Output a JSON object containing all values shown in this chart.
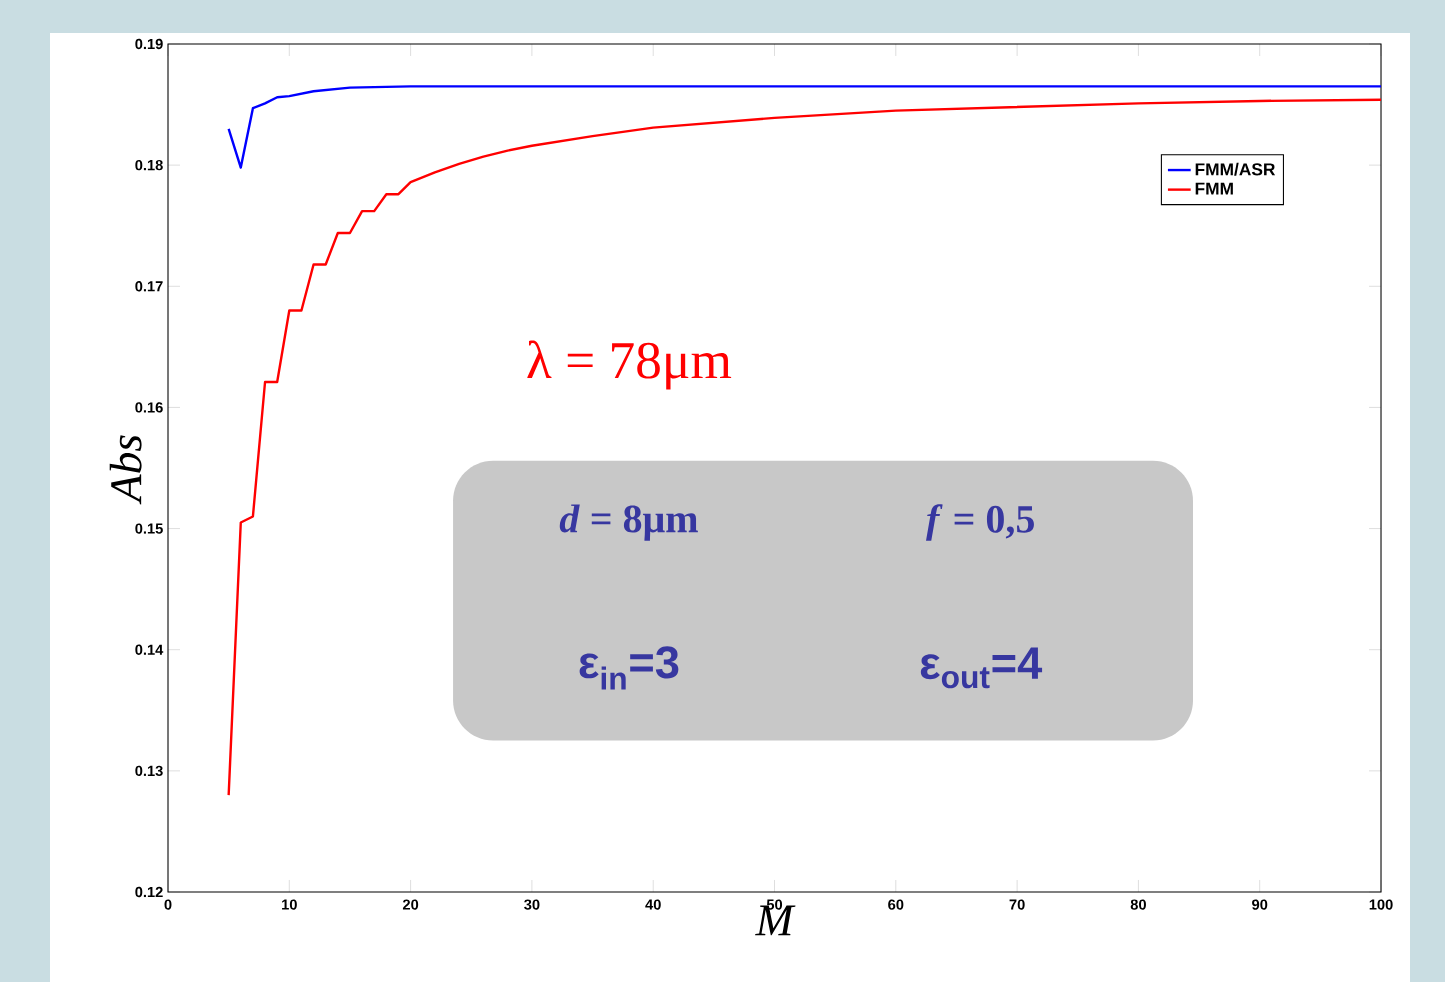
{
  "chart_data": {
    "type": "line",
    "xlabel": "M",
    "ylabel": "Abs",
    "xlim": [
      0,
      100
    ],
    "ylim": [
      0.12,
      0.19
    ],
    "xticks": [
      0,
      10,
      20,
      30,
      40,
      50,
      60,
      70,
      80,
      90,
      100
    ],
    "yticks": [
      0.12,
      0.13,
      0.14,
      0.15,
      0.16,
      0.17,
      0.18,
      0.19
    ],
    "legend": "top right",
    "annotations": [
      "λ = 78μm",
      "*d* = 8μm",
      "*f* = 0,5",
      "ε$_{in}$=3",
      "ε$_{out}$=4"
    ],
    "series": [
      {
        "name": "FMM/ASR",
        "color": "#0000ff",
        "x": [
          5,
          6,
          7,
          8,
          9,
          10,
          12,
          15,
          20,
          30,
          50,
          100
        ],
        "values": [
          0.183,
          0.1798,
          0.1847,
          0.1851,
          0.1856,
          0.1857,
          0.1861,
          0.1864,
          0.1865,
          0.1865,
          0.1865,
          0.1865
        ]
      },
      {
        "name": "FMM",
        "color": "#ff0000",
        "x": [
          5,
          6,
          7,
          8,
          9,
          10,
          11,
          12,
          13,
          14,
          15,
          16,
          17,
          18,
          19,
          20,
          22,
          24,
          26,
          28,
          30,
          35,
          40,
          50,
          60,
          70,
          80,
          90,
          100
        ],
        "values": [
          0.128,
          0.1505,
          0.151,
          0.1621,
          0.1621,
          0.168,
          0.168,
          0.1718,
          0.1718,
          0.1744,
          0.1744,
          0.1762,
          0.1762,
          0.1776,
          0.1776,
          0.1786,
          0.1794,
          0.1801,
          0.1807,
          0.1812,
          0.1816,
          0.1824,
          0.1831,
          0.1839,
          0.1845,
          0.1848,
          0.1851,
          0.1853,
          0.1854
        ]
      }
    ]
  }
}
